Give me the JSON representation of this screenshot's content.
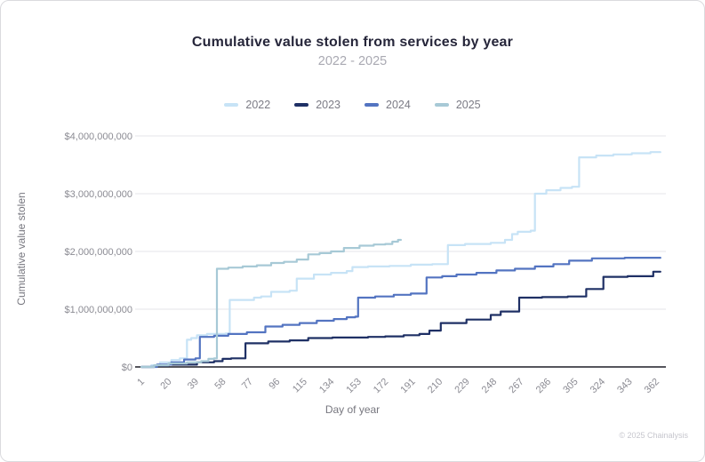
{
  "header": {
    "title": "Cumulative value stolen from services by year",
    "subtitle": "2022 - 2025"
  },
  "footer": {
    "credit": "© 2025 Chainalysis"
  },
  "chart_data": {
    "type": "line",
    "title": "Cumulative value stolen from services by year",
    "subtitle": "2022 - 2025",
    "xlabel": "Day of year",
    "ylabel": "Cumulative value stolen",
    "interpolation": "step-after",
    "grid": "horizontal",
    "legend_position": "top-center",
    "unit": "USD billions",
    "x_range": [
      1,
      365
    ],
    "y_range_billions": [
      0,
      4
    ],
    "x_ticks": [
      1,
      20,
      39,
      58,
      77,
      96,
      115,
      134,
      153,
      172,
      191,
      210,
      229,
      248,
      267,
      286,
      305,
      324,
      343,
      362
    ],
    "y_ticks": [
      {
        "value": 0,
        "label": "$0"
      },
      {
        "value": 1,
        "label": "$1,000,000,000"
      },
      {
        "value": 2,
        "label": "$2,000,000,000"
      },
      {
        "value": 3,
        "label": "$3,000,000,000"
      },
      {
        "value": 4,
        "label": "$4,000,000,000"
      }
    ],
    "series": [
      {
        "name": "2022",
        "color": "#c7e3f6",
        "extend_to_day": 365,
        "points": [
          [
            1,
            0.0
          ],
          [
            8,
            0.03
          ],
          [
            14,
            0.08
          ],
          [
            22,
            0.12
          ],
          [
            28,
            0.15
          ],
          [
            33,
            0.47
          ],
          [
            36,
            0.5
          ],
          [
            40,
            0.55
          ],
          [
            47,
            0.57
          ],
          [
            60,
            0.58
          ],
          [
            63,
            1.16
          ],
          [
            80,
            1.2
          ],
          [
            85,
            1.22
          ],
          [
            92,
            1.3
          ],
          [
            105,
            1.32
          ],
          [
            110,
            1.53
          ],
          [
            122,
            1.6
          ],
          [
            134,
            1.63
          ],
          [
            145,
            1.66
          ],
          [
            149,
            1.73
          ],
          [
            160,
            1.74
          ],
          [
            175,
            1.75
          ],
          [
            190,
            1.77
          ],
          [
            205,
            1.78
          ],
          [
            216,
            2.11
          ],
          [
            228,
            2.13
          ],
          [
            246,
            2.15
          ],
          [
            256,
            2.2
          ],
          [
            261,
            2.3
          ],
          [
            265,
            2.34
          ],
          [
            274,
            2.36
          ],
          [
            277,
            3.0
          ],
          [
            285,
            3.06
          ],
          [
            295,
            3.1
          ],
          [
            303,
            3.12
          ],
          [
            308,
            3.63
          ],
          [
            320,
            3.66
          ],
          [
            332,
            3.68
          ],
          [
            345,
            3.7
          ],
          [
            358,
            3.72
          ]
        ]
      },
      {
        "name": "2023",
        "color": "#1f3065",
        "extend_to_day": 365,
        "points": [
          [
            1,
            0.0
          ],
          [
            10,
            0.02
          ],
          [
            20,
            0.04
          ],
          [
            40,
            0.08
          ],
          [
            52,
            0.1
          ],
          [
            58,
            0.14
          ],
          [
            64,
            0.15
          ],
          [
            74,
            0.41
          ],
          [
            90,
            0.44
          ],
          [
            105,
            0.46
          ],
          [
            118,
            0.5
          ],
          [
            135,
            0.51
          ],
          [
            160,
            0.52
          ],
          [
            172,
            0.53
          ],
          [
            185,
            0.55
          ],
          [
            196,
            0.57
          ],
          [
            203,
            0.63
          ],
          [
            211,
            0.76
          ],
          [
            229,
            0.82
          ],
          [
            246,
            0.9
          ],
          [
            253,
            0.96
          ],
          [
            266,
            1.2
          ],
          [
            282,
            1.21
          ],
          [
            300,
            1.22
          ],
          [
            313,
            1.35
          ],
          [
            325,
            1.56
          ],
          [
            342,
            1.57
          ],
          [
            360,
            1.65
          ]
        ]
      },
      {
        "name": "2024",
        "color": "#5374c1",
        "extend_to_day": 365,
        "points": [
          [
            1,
            0.0
          ],
          [
            12,
            0.04
          ],
          [
            22,
            0.08
          ],
          [
            31,
            0.13
          ],
          [
            39,
            0.15
          ],
          [
            42,
            0.52
          ],
          [
            52,
            0.54
          ],
          [
            62,
            0.57
          ],
          [
            75,
            0.6
          ],
          [
            88,
            0.7
          ],
          [
            100,
            0.73
          ],
          [
            112,
            0.76
          ],
          [
            124,
            0.8
          ],
          [
            136,
            0.83
          ],
          [
            145,
            0.86
          ],
          [
            151,
            0.87
          ],
          [
            153,
            1.2
          ],
          [
            165,
            1.22
          ],
          [
            178,
            1.25
          ],
          [
            190,
            1.27
          ],
          [
            201,
            1.55
          ],
          [
            212,
            1.57
          ],
          [
            222,
            1.6
          ],
          [
            236,
            1.63
          ],
          [
            250,
            1.67
          ],
          [
            263,
            1.7
          ],
          [
            277,
            1.74
          ],
          [
            290,
            1.78
          ],
          [
            301,
            1.84
          ],
          [
            317,
            1.88
          ],
          [
            340,
            1.89
          ]
        ]
      },
      {
        "name": "2025",
        "color": "#a7c9d6",
        "extend_to_day": 183,
        "points": [
          [
            1,
            0.0
          ],
          [
            10,
            0.03
          ],
          [
            20,
            0.06
          ],
          [
            33,
            0.08
          ],
          [
            43,
            0.1
          ],
          [
            48,
            0.14
          ],
          [
            52,
            0.15
          ],
          [
            54,
            1.7
          ],
          [
            62,
            1.72
          ],
          [
            72,
            1.74
          ],
          [
            82,
            1.76
          ],
          [
            92,
            1.8
          ],
          [
            101,
            1.82
          ],
          [
            110,
            1.86
          ],
          [
            118,
            1.95
          ],
          [
            126,
            1.97
          ],
          [
            134,
            2.0
          ],
          [
            143,
            2.06
          ],
          [
            154,
            2.1
          ],
          [
            164,
            2.12
          ],
          [
            172,
            2.13
          ],
          [
            177,
            2.17
          ],
          [
            181,
            2.2
          ]
        ]
      }
    ]
  }
}
